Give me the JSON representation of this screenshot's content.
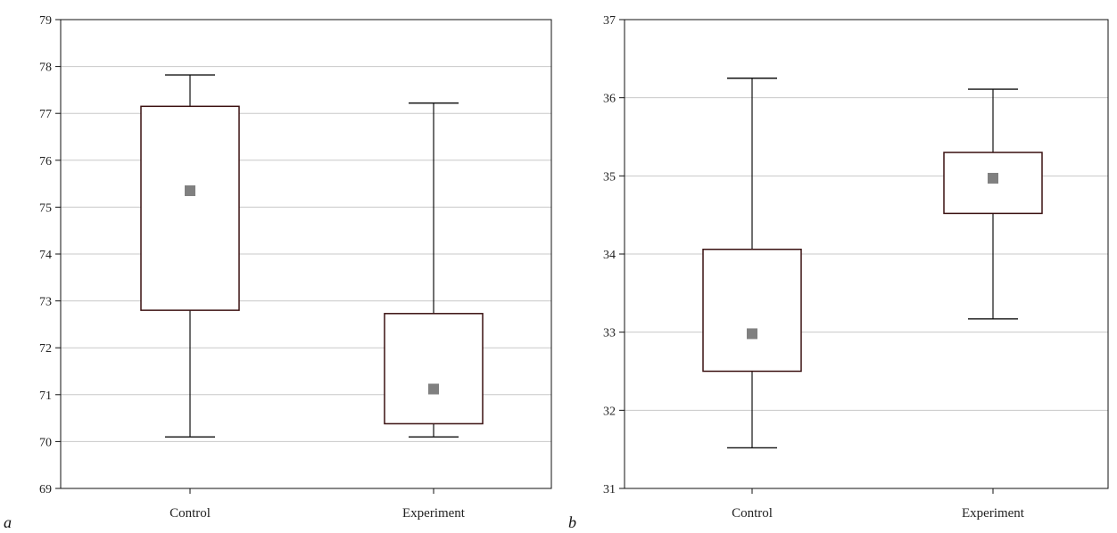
{
  "chart_data": [
    {
      "type": "box",
      "panel_label": "a",
      "title": "",
      "xlabel": "",
      "ylabel": "",
      "ylim": [
        69,
        79
      ],
      "yticks": [
        69,
        70,
        71,
        72,
        73,
        74,
        75,
        76,
        77,
        78,
        79
      ],
      "grid": true,
      "categories": [
        "Control",
        "Experiment"
      ],
      "boxes": [
        {
          "category": "Control",
          "whisker_low": 70.1,
          "box_low": 72.8,
          "center": 75.35,
          "box_high": 77.15,
          "whisker_high": 77.82
        },
        {
          "category": "Experiment",
          "whisker_low": 70.1,
          "box_low": 70.38,
          "center": 71.12,
          "box_high": 72.73,
          "whisker_high": 77.22
        }
      ],
      "colors": {
        "marker": "#808080",
        "box_edge": "#3a1010",
        "grid": "#c8c8c8"
      }
    },
    {
      "type": "box",
      "panel_label": "b",
      "title": "",
      "xlabel": "",
      "ylabel": "",
      "ylim": [
        31,
        37
      ],
      "yticks": [
        31,
        32,
        33,
        34,
        35,
        36,
        37
      ],
      "grid": true,
      "categories": [
        "Control",
        "Experiment"
      ],
      "boxes": [
        {
          "category": "Control",
          "whisker_low": 31.52,
          "box_low": 32.5,
          "center": 32.98,
          "box_high": 34.06,
          "whisker_high": 36.25
        },
        {
          "category": "Experiment",
          "whisker_low": 33.17,
          "box_low": 34.52,
          "center": 34.97,
          "box_high": 35.3,
          "whisker_high": 36.11
        }
      ],
      "colors": {
        "marker": "#808080",
        "box_edge": "#3a1010",
        "grid": "#c8c8c8"
      }
    }
  ]
}
